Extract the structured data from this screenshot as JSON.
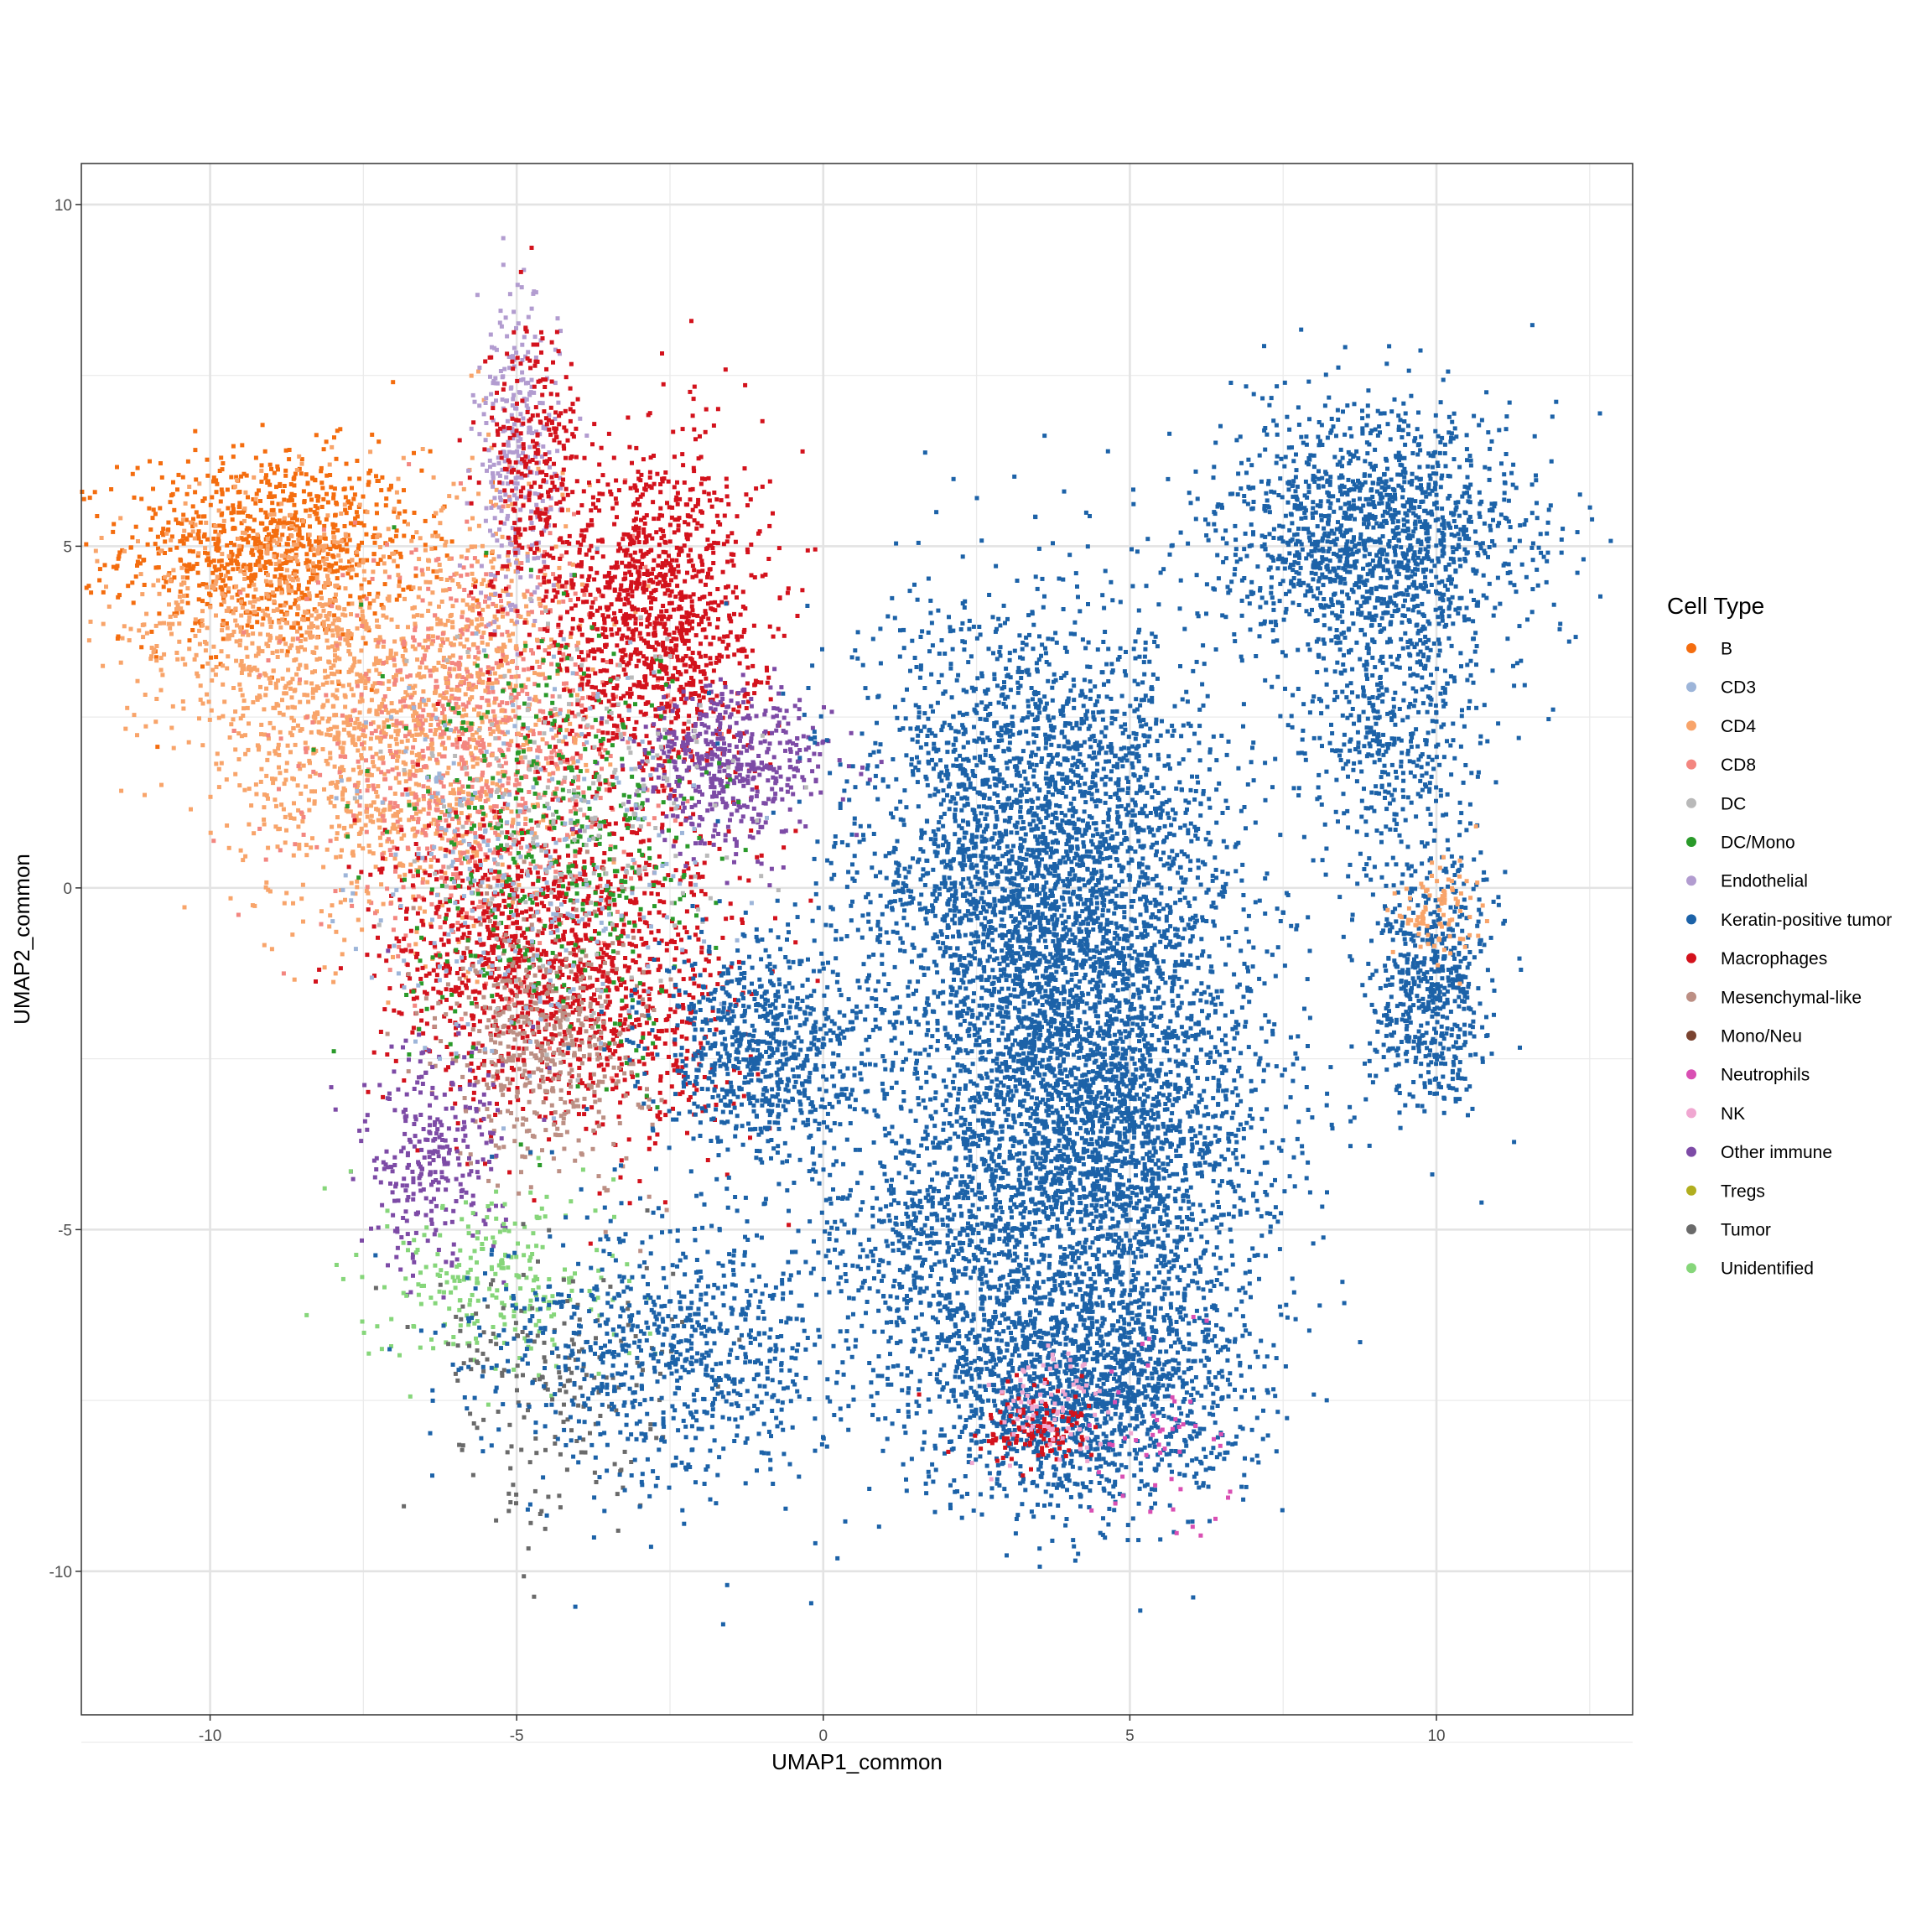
{
  "chart_data": {
    "type": "scatter",
    "xlabel": "UMAP1_common",
    "ylabel": "UMAP2_common",
    "xlim": [
      -12.1,
      13.2
    ],
    "ylim": [
      -12.1,
      10.6
    ],
    "x_ticks": [
      -10,
      -5,
      0,
      5,
      10
    ],
    "y_ticks": [
      -10,
      -5,
      0,
      5,
      10
    ],
    "x_tick_labels": [
      "-10",
      "-5",
      "0",
      "5",
      "10"
    ],
    "y_tick_labels": [
      "-10",
      "-5",
      "0",
      "5",
      "10"
    ],
    "grid": true,
    "legend_placement": "right",
    "legend": {
      "title": "Cell Type",
      "entries": [
        {
          "name": "B",
          "color": "#F46D0F"
        },
        {
          "name": "CD3",
          "color": "#9DB5D9"
        },
        {
          "name": "CD4",
          "color": "#F8A46A"
        },
        {
          "name": "CD8",
          "color": "#F38680"
        },
        {
          "name": "DC",
          "color": "#B9B9B9"
        },
        {
          "name": "DC/Mono",
          "color": "#2A9A2A"
        },
        {
          "name": "Endothelial",
          "color": "#B29CD0"
        },
        {
          "name": "Keratin-positive tumor",
          "color": "#1C62A8"
        },
        {
          "name": "Macrophages",
          "color": "#D3121C"
        },
        {
          "name": "Mesenchymal-like",
          "color": "#BC8F84"
        },
        {
          "name": "Mono/Neu",
          "color": "#7A4330"
        },
        {
          "name": "Neutrophils",
          "color": "#D94FB3"
        },
        {
          "name": "NK",
          "color": "#F0A7D1"
        },
        {
          "name": "Other immune",
          "color": "#7D4BA6"
        },
        {
          "name": "Tregs",
          "color": "#B1AE1F"
        },
        {
          "name": "Tumor",
          "color": "#6A6A6A"
        },
        {
          "name": "Unidentified",
          "color": "#86D67A"
        }
      ]
    },
    "regions": [
      {
        "type": "B",
        "cx": -9.0,
        "cy": 5.0,
        "sx": 1.2,
        "sy": 0.7,
        "n": 900
      },
      {
        "type": "CD4",
        "cx": -8.8,
        "cy": 3.8,
        "sx": 1.3,
        "sy": 1.0,
        "n": 700
      },
      {
        "type": "CD4",
        "cx": -7.2,
        "cy": 1.8,
        "sx": 1.2,
        "sy": 1.2,
        "n": 800
      },
      {
        "type": "CD8",
        "cx": -5.6,
        "cy": 2.0,
        "sx": 1.3,
        "sy": 1.4,
        "n": 900
      },
      {
        "type": "CD4",
        "cx": -5.5,
        "cy": 3.5,
        "sx": 0.8,
        "sy": 1.5,
        "n": 400
      },
      {
        "type": "Endothelial",
        "cx": -5.0,
        "cy": 6.2,
        "sx": 0.35,
        "sy": 1.2,
        "n": 300
      },
      {
        "type": "Macrophages",
        "cx": -4.7,
        "cy": 6.3,
        "sx": 0.4,
        "sy": 1.0,
        "n": 250
      },
      {
        "type": "Macrophages",
        "cx": -2.8,
        "cy": 4.0,
        "sx": 0.9,
        "sy": 1.3,
        "n": 1300
      },
      {
        "type": "Macrophages",
        "cx": -5.0,
        "cy": -1.0,
        "sx": 1.1,
        "sy": 1.1,
        "n": 900
      },
      {
        "type": "Macrophages",
        "cx": -3.0,
        "cy": -1.5,
        "sx": 0.9,
        "sy": 1.2,
        "n": 500
      },
      {
        "type": "Mesenchymal-like",
        "cx": -4.5,
        "cy": -2.2,
        "sx": 0.8,
        "sy": 1.0,
        "n": 500
      },
      {
        "type": "Other immune",
        "cx": -1.5,
        "cy": 1.8,
        "sx": 0.8,
        "sy": 0.6,
        "n": 500
      },
      {
        "type": "Other immune",
        "cx": -6.4,
        "cy": -4.0,
        "sx": 0.6,
        "sy": 0.8,
        "n": 300
      },
      {
        "type": "DC/Mono",
        "cx": -4.2,
        "cy": 0.5,
        "sx": 1.3,
        "sy": 1.5,
        "n": 450
      },
      {
        "type": "CD3",
        "cx": -4.8,
        "cy": 0.4,
        "sx": 1.4,
        "sy": 1.4,
        "n": 300
      },
      {
        "type": "DC",
        "cx": -4.0,
        "cy": 1.2,
        "sx": 1.3,
        "sy": 1.3,
        "n": 200
      },
      {
        "type": "Unidentified",
        "cx": -5.3,
        "cy": -5.8,
        "sx": 1.0,
        "sy": 0.7,
        "n": 250
      },
      {
        "type": "Tumor",
        "cx": -4.3,
        "cy": -7.3,
        "sx": 1.0,
        "sy": 1.0,
        "n": 200
      },
      {
        "type": "Keratin-positive tumor",
        "cx": -2.3,
        "cy": -6.8,
        "sx": 1.6,
        "sy": 1.0,
        "n": 900
      },
      {
        "type": "Keratin-positive tumor",
        "cx": -1.0,
        "cy": -2.4,
        "sx": 0.9,
        "sy": 0.8,
        "n": 800
      },
      {
        "type": "Keratin-positive tumor",
        "cx": 3.6,
        "cy": 0.2,
        "sx": 1.5,
        "sy": 1.9,
        "n": 3500
      },
      {
        "type": "Keratin-positive tumor",
        "cx": 4.4,
        "cy": -3.6,
        "sx": 1.5,
        "sy": 1.6,
        "n": 2800
      },
      {
        "type": "Keratin-positive tumor",
        "cx": 4.2,
        "cy": -7.4,
        "sx": 1.3,
        "sy": 0.9,
        "n": 1700
      },
      {
        "type": "Keratin-positive tumor",
        "cx": 1.8,
        "cy": -5.2,
        "sx": 1.0,
        "sy": 0.8,
        "n": 500
      },
      {
        "type": "Keratin-positive tumor",
        "cx": 9.0,
        "cy": 5.2,
        "sx": 1.3,
        "sy": 0.9,
        "n": 1500
      },
      {
        "type": "Keratin-positive tumor",
        "cx": 9.3,
        "cy": 2.3,
        "sx": 0.8,
        "sy": 1.1,
        "n": 500
      },
      {
        "type": "Keratin-positive tumor",
        "cx": 9.9,
        "cy": -1.5,
        "sx": 0.5,
        "sy": 0.9,
        "n": 600
      },
      {
        "type": "CD4",
        "cx": 10.0,
        "cy": -0.3,
        "sx": 0.4,
        "sy": 0.4,
        "n": 90
      },
      {
        "type": "Macrophages",
        "cx": 3.4,
        "cy": -7.9,
        "sx": 0.5,
        "sy": 0.3,
        "n": 120
      },
      {
        "type": "NK",
        "cx": 3.6,
        "cy": -7.6,
        "sx": 0.5,
        "sy": 0.4,
        "n": 80
      },
      {
        "type": "Neutrophils",
        "cx": 5.6,
        "cy": -8.0,
        "sx": 0.6,
        "sy": 0.8,
        "n": 50
      }
    ]
  }
}
